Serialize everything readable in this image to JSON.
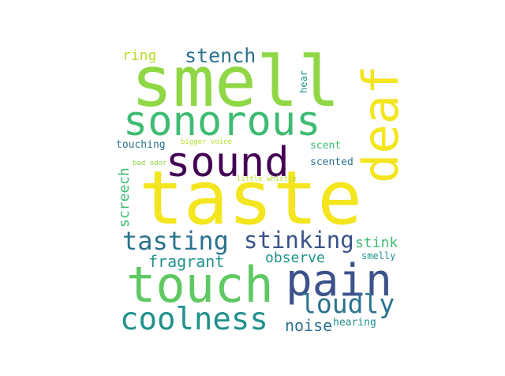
{
  "words": {
    "taste": "taste",
    "smell": "smell",
    "deaf": "deaf",
    "sonorous": "sonorous",
    "sound": "sound",
    "touch": "touch",
    "pain": "pain",
    "tasting": "tasting",
    "stinking": "stinking",
    "coolness": "coolness",
    "loudly": "loudly",
    "stench": "stench",
    "ring": "ring",
    "fragrant": "fragrant",
    "observe": "observe",
    "screech": "screech",
    "stink": "stink",
    "noise": "noise",
    "scented": "scented",
    "scent": "scent",
    "touching": "touching",
    "hearing": "hearing",
    "smelly": "smelly",
    "hear": "hear",
    "bigger_voice": "bigger voice",
    "bad_odor": "bad odor",
    "little_whistle": "little whistle"
  },
  "colors": {
    "yellow": "#f3e51e",
    "light_green": "#8fd744",
    "green": "#5ec962",
    "mint": "#3fbc73",
    "teal": "#21918c",
    "blue_teal": "#2c728e",
    "blue": "#3b528b",
    "indigo": "#472d7b",
    "purple": "#440154",
    "lime": "#b5de2b"
  }
}
